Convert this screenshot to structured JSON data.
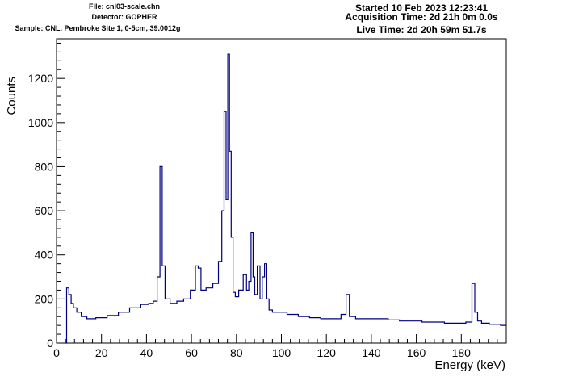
{
  "header": {
    "file": "File: cnl03-scale.chn",
    "detector": "Detector: GOPHER",
    "sample": "Sample: CNL, Pembroke Site 1, 0-5cm, 39.0012g",
    "started": "Started 10 Feb 2023 12:23:41",
    "acquisition": "Acquisition Time: 2d 21h 0m 0.0s",
    "live": "Live Time: 2d 20h 59m 51.7s"
  },
  "chart_data": {
    "type": "line",
    "title": "",
    "xlabel": "Energy (keV)",
    "ylabel": "Counts",
    "xlim": [
      0,
      200
    ],
    "ylim": [
      0,
      1380
    ],
    "x_ticks": [
      0,
      20,
      40,
      60,
      80,
      100,
      120,
      140,
      160,
      180
    ],
    "y_ticks": [
      0,
      200,
      400,
      600,
      800,
      1000,
      1200
    ],
    "line_color": "#000080",
    "grid": false,
    "legend": "none",
    "series": [
      {
        "x": [
          4,
          5,
          6,
          7,
          8,
          10,
          12,
          15,
          20,
          25,
          30,
          35,
          40,
          42,
          44,
          45.5,
          46.5,
          47.5,
          49,
          52,
          55,
          58,
          61,
          62.5,
          63.5,
          65,
          68,
          71,
          73,
          74,
          75,
          75.8,
          76.5,
          77.3,
          78,
          79,
          80,
          82,
          84,
          85,
          86,
          87,
          87.8,
          88.5,
          90,
          91,
          92,
          93,
          94,
          95,
          97,
          100,
          105,
          110,
          115,
          120,
          125,
          128,
          129.5,
          131,
          135,
          140,
          145,
          150,
          155,
          160,
          165,
          170,
          175,
          180,
          184,
          185.5,
          186.5,
          188,
          190,
          195,
          200
        ],
        "y": [
          0,
          250,
          220,
          180,
          160,
          140,
          120,
          110,
          115,
          125,
          140,
          160,
          175,
          180,
          190,
          300,
          800,
          350,
          200,
          180,
          190,
          200,
          240,
          350,
          340,
          240,
          250,
          270,
          370,
          600,
          1050,
          650,
          1310,
          870,
          480,
          230,
          210,
          240,
          310,
          240,
          280,
          500,
          300,
          220,
          350,
          200,
          300,
          360,
          200,
          150,
          140,
          140,
          130,
          120,
          115,
          110,
          110,
          130,
          220,
          120,
          110,
          110,
          110,
          105,
          100,
          100,
          95,
          95,
          90,
          90,
          95,
          270,
          140,
          100,
          90,
          85,
          80
        ]
      }
    ]
  }
}
